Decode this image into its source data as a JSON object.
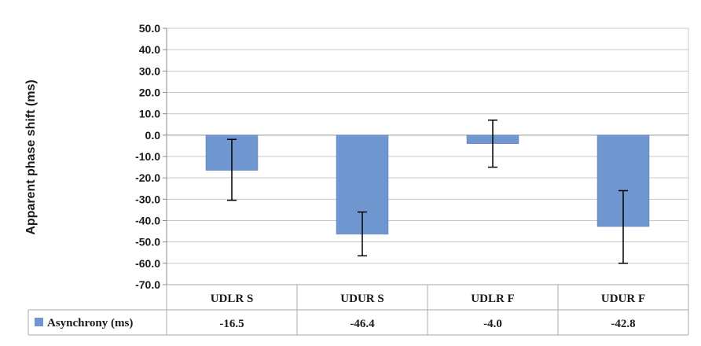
{
  "chart_data": {
    "type": "bar",
    "ylabel": "Apparent phase shift (ms)",
    "ylim": [
      -70,
      50
    ],
    "ytick_step": 10,
    "yticks": [
      "50.0",
      "40.0",
      "30.0",
      "20.0",
      "10.0",
      "0.0",
      "-10.0",
      "-20.0",
      "-30.0",
      "-40.0",
      "-50.0",
      "-60.0",
      "-70.0"
    ],
    "grid": true,
    "categories": [
      "UDLR S",
      "UDUR S",
      "UDLR F",
      "UDUR F"
    ],
    "series": [
      {
        "name": "Asynchrony (ms)",
        "values": [
          -16.5,
          -46.4,
          -4.0,
          -42.8
        ],
        "value_labels": [
          "-16.5",
          "-46.4",
          "-4.0",
          "-42.8"
        ],
        "error_low": [
          -30.5,
          -56.5,
          -15.0,
          -60.0
        ],
        "error_high": [
          -2.0,
          -36.0,
          7.0,
          -26.0
        ],
        "color": "#6f96cf"
      }
    ],
    "legend_placement": "data-table"
  }
}
